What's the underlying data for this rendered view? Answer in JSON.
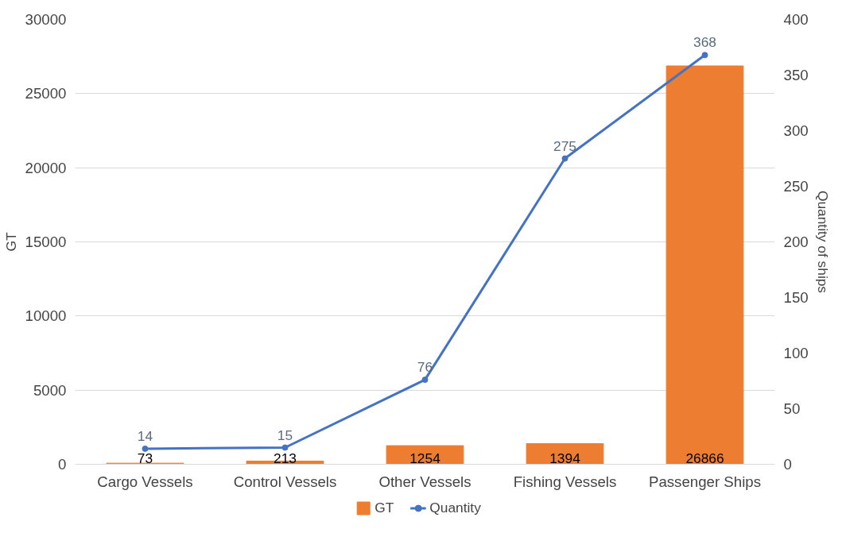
{
  "chart_data": {
    "type": "bar",
    "categories": [
      "Cargo Vessels",
      "Control Vessels",
      "Other Vessels",
      "Fishing Vessels",
      "Passenger Ships"
    ],
    "ylabel": "GT",
    "y2label": "Quantity of ships",
    "ylim": [
      0,
      30000
    ],
    "yticks": [
      0,
      5000,
      10000,
      15000,
      20000,
      25000,
      30000
    ],
    "y2lim": [
      0,
      400
    ],
    "y2ticks": [
      0,
      50,
      100,
      150,
      200,
      250,
      300,
      350,
      400
    ],
    "grid": "y",
    "legend": "bottom",
    "data_labels": true,
    "marker": "circle",
    "series": [
      {
        "name": "GT",
        "color": "#ed7d31",
        "values": [
          73,
          213,
          1254,
          1394,
          26866
        ]
      },
      {
        "name": "Quantity",
        "type": "line",
        "axis": "y2",
        "color": "#4472c4",
        "values": [
          14,
          15,
          76,
          275,
          368
        ]
      }
    ]
  }
}
